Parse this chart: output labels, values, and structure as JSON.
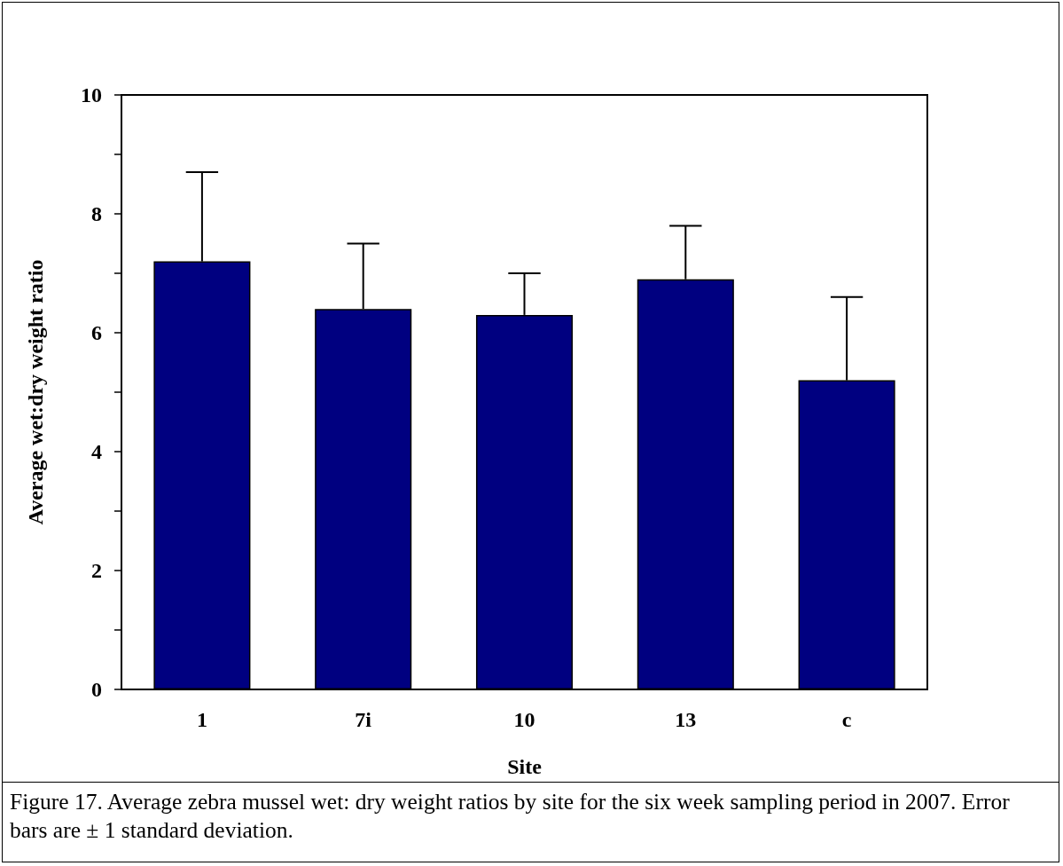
{
  "chart_data": {
    "type": "bar",
    "xlabel": "Site",
    "ylabel": "Average wet:dry weight ratio",
    "categories": [
      "1",
      "7i",
      "10",
      "13",
      "c"
    ],
    "values": [
      7.2,
      6.4,
      6.3,
      6.9,
      5.2
    ],
    "errors": [
      [
        7.2,
        8.7
      ],
      [
        6.4,
        7.5
      ],
      [
        6.3,
        7.0
      ],
      [
        6.9,
        7.8
      ],
      [
        5.2,
        6.6
      ]
    ],
    "color": "#000080",
    "ylim": [
      0,
      10
    ],
    "yticks": [
      0,
      {
        "value": 1,
        "label": null
      },
      2,
      {
        "value": 3,
        "label": null
      },
      4,
      {
        "value": 5,
        "label": null
      },
      6,
      {
        "value": 7,
        "label": null
      },
      8,
      {
        "value": 9,
        "label": null
      },
      10
    ],
    "grid": false,
    "annotations": [
      "Figure 17.  Average zebra mussel wet: dry weight ratios by site for the six week sampling period in 2007. Error bars are ± 1 standard deviation."
    ]
  }
}
